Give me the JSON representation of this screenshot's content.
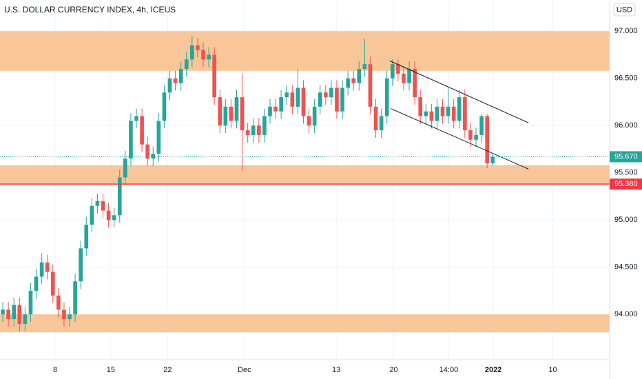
{
  "chart_data": {
    "type": "candlestick",
    "title": "U.S. DOLLAR CURRENCY INDEX, 4h, ICEUS",
    "currency": "USD",
    "up_color": "#26a69a",
    "down_color": "#ef5350",
    "zone_color": "#f8c08f",
    "level_color": "#f23645",
    "open": [
      94.0,
      94.05,
      93.95,
      94.1,
      93.9,
      94.0,
      94.25,
      94.4,
      94.55,
      94.45,
      94.2,
      94.05,
      93.95,
      94.0,
      94.35,
      94.7,
      94.95,
      95.15,
      95.2,
      95.1,
      95.0,
      95.05,
      95.45,
      95.65,
      96.05,
      96.1,
      95.8,
      95.65,
      95.7,
      96.05,
      96.35,
      96.5,
      96.45,
      96.6,
      96.7,
      96.85,
      96.8,
      96.7,
      96.75,
      96.3,
      96.0,
      96.2,
      96.05,
      96.3,
      95.95,
      95.9,
      96.0,
      95.9,
      96.1,
      96.2,
      96.15,
      96.3,
      96.35,
      96.2,
      96.4,
      96.1,
      96.0,
      96.2,
      96.35,
      96.3,
      96.4,
      96.15,
      96.4,
      96.5,
      96.45,
      96.6,
      96.65,
      96.2,
      95.95,
      96.1,
      96.5,
      96.65,
      96.55,
      96.45,
      96.6,
      96.3,
      96.1,
      96.15,
      96.05,
      96.2,
      96.1,
      96.2,
      96.05,
      96.3,
      95.95,
      95.85,
      95.9,
      96.1,
      95.6
    ],
    "high": [
      94.13,
      94.13,
      94.18,
      94.18,
      94.08,
      94.33,
      94.48,
      94.65,
      94.63,
      94.53,
      94.28,
      94.13,
      94.08,
      94.43,
      94.78,
      95.03,
      95.23,
      95.28,
      95.28,
      95.18,
      95.13,
      95.53,
      95.73,
      96.13,
      96.18,
      96.18,
      95.88,
      95.78,
      96.13,
      96.43,
      96.58,
      96.58,
      96.68,
      96.78,
      96.95,
      96.93,
      96.88,
      96.83,
      96.83,
      96.38,
      96.28,
      96.28,
      96.38,
      96.55,
      96.03,
      96.08,
      96.08,
      96.18,
      96.28,
      96.28,
      96.38,
      96.43,
      96.43,
      96.6,
      96.48,
      96.18,
      96.28,
      96.43,
      96.43,
      96.48,
      96.48,
      96.48,
      96.58,
      96.58,
      96.68,
      96.92,
      96.73,
      96.28,
      96.18,
      96.58,
      96.7,
      96.7,
      96.63,
      96.68,
      96.68,
      96.38,
      96.23,
      96.23,
      96.28,
      96.28,
      96.4,
      96.28,
      96.38,
      96.38,
      96.03,
      95.98,
      96.12,
      96.12,
      95.7
    ],
    "low": [
      93.92,
      93.87,
      93.87,
      93.82,
      93.82,
      93.92,
      94.17,
      94.32,
      94.37,
      94.12,
      93.97,
      93.87,
      93.87,
      93.92,
      94.27,
      94.62,
      94.87,
      95.07,
      95.02,
      94.92,
      94.92,
      94.97,
      95.37,
      95.57,
      95.97,
      95.72,
      95.57,
      95.57,
      95.62,
      95.97,
      96.27,
      96.37,
      96.37,
      96.52,
      96.62,
      96.72,
      96.62,
      96.62,
      96.22,
      95.92,
      95.92,
      95.97,
      95.97,
      95.52,
      95.82,
      95.82,
      95.82,
      95.82,
      96.02,
      96.07,
      96.07,
      96.22,
      96.12,
      96.12,
      96.02,
      95.92,
      95.92,
      96.12,
      96.22,
      96.22,
      96.07,
      96.07,
      96.32,
      96.37,
      96.37,
      96.52,
      96.12,
      95.87,
      95.87,
      96.02,
      96.42,
      96.47,
      96.37,
      96.37,
      96.22,
      96.02,
      96.02,
      95.97,
      95.97,
      96.02,
      96.02,
      95.97,
      95.97,
      95.87,
      95.77,
      95.77,
      95.82,
      95.55,
      95.57
    ],
    "close": [
      94.05,
      93.95,
      94.1,
      93.9,
      94.0,
      94.25,
      94.4,
      94.55,
      94.45,
      94.2,
      94.05,
      93.95,
      94.0,
      94.35,
      94.7,
      94.95,
      95.15,
      95.2,
      95.1,
      95.0,
      95.05,
      95.45,
      95.65,
      96.05,
      96.1,
      95.8,
      95.65,
      95.7,
      96.05,
      96.35,
      96.5,
      96.45,
      96.6,
      96.7,
      96.85,
      96.8,
      96.7,
      96.75,
      96.3,
      96.0,
      96.2,
      96.05,
      96.3,
      95.95,
      95.9,
      96.0,
      95.9,
      96.1,
      96.2,
      96.15,
      96.3,
      96.35,
      96.2,
      96.4,
      96.1,
      96.0,
      96.2,
      96.35,
      96.3,
      96.4,
      96.15,
      96.4,
      96.5,
      96.45,
      96.6,
      96.65,
      96.2,
      95.95,
      96.1,
      96.5,
      96.65,
      96.55,
      96.45,
      96.6,
      96.3,
      96.1,
      96.15,
      96.05,
      96.2,
      96.1,
      96.2,
      96.05,
      96.3,
      95.95,
      95.85,
      95.9,
      96.1,
      95.6,
      95.67
    ],
    "ylim": [
      93.52,
      97.33
    ],
    "yticks": [
      {
        "value": 94.0,
        "label": "94.000"
      },
      {
        "value": 94.5,
        "label": "94.500"
      },
      {
        "value": 95.0,
        "label": "95.000"
      },
      {
        "value": 95.5,
        "label": "95.500"
      },
      {
        "value": 96.0,
        "label": "96.000"
      },
      {
        "value": 96.5,
        "label": "96.500"
      },
      {
        "value": 97.0,
        "label": "97.000"
      }
    ],
    "xlim": [
      -0.5,
      109
    ],
    "xticks": [
      {
        "value": 9.4,
        "label": "8"
      },
      {
        "value": 19.4,
        "label": "15"
      },
      {
        "value": 29.6,
        "label": "22"
      },
      {
        "value": 43.4,
        "label": "Dec"
      },
      {
        "value": 59.9,
        "label": "13"
      },
      {
        "value": 70.2,
        "label": "20"
      },
      {
        "value": 80.1,
        "label": "14:00"
      },
      {
        "value": 88.1,
        "label": "2022"
      },
      {
        "value": 98.8,
        "label": "10"
      }
    ],
    "zones": [
      {
        "from": 96.58,
        "to": 97.0
      },
      {
        "from": 95.38,
        "to": 95.58
      },
      {
        "from": 93.81,
        "to": 94.0
      }
    ],
    "level": {
      "value": 95.38,
      "label": "95.380"
    },
    "last": {
      "value": 95.67,
      "label": "95.670"
    },
    "channel": [
      {
        "x1": 69.5,
        "y1": 96.686,
        "x2": 94.4,
        "y2": 96.03
      },
      {
        "x1": 69.7,
        "y1": 96.18,
        "x2": 94.4,
        "y2": 95.54
      }
    ]
  }
}
